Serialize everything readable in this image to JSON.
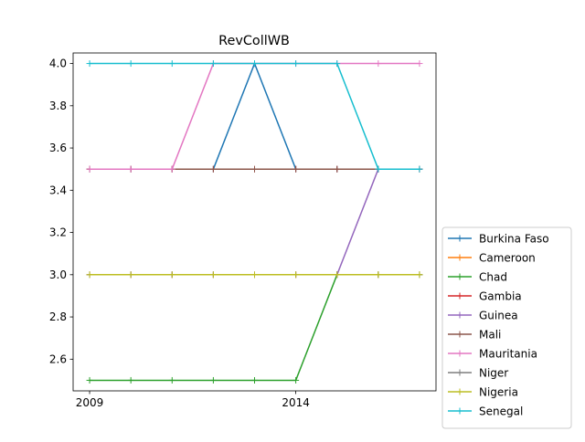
{
  "chart_data": {
    "type": "line",
    "title": "RevCollWB",
    "xlabel": "",
    "ylabel": "",
    "x": [
      2009,
      2010,
      2011,
      2012,
      2013,
      2014,
      2015,
      2016,
      2017
    ],
    "x_ticks": [
      2009,
      2014
    ],
    "xlim": [
      2008.6,
      2017.4
    ],
    "ylim": [
      2.45,
      4.05
    ],
    "y_ticks": [
      "2.6",
      "2.8",
      "3.0",
      "3.2",
      "3.4",
      "3.6",
      "3.8",
      "4.0"
    ],
    "grid": false,
    "legend_position": "lower-right-outside",
    "series": [
      {
        "name": "Burkina Faso",
        "color": "#1f77b4",
        "values": [
          3.5,
          3.5,
          3.5,
          3.5,
          4.0,
          3.5,
          3.5,
          3.5,
          3.5
        ]
      },
      {
        "name": "Cameroon",
        "color": "#ff7f0e",
        "values": [
          3.0,
          3.0,
          3.0,
          3.0,
          3.0,
          3.0,
          3.0,
          3.0,
          3.0
        ]
      },
      {
        "name": "Chad",
        "color": "#2ca02c",
        "values": [
          2.5,
          2.5,
          2.5,
          2.5,
          2.5,
          2.5,
          3.0,
          3.0,
          3.0
        ]
      },
      {
        "name": "Gambia",
        "color": "#d62728",
        "values": [
          3.5,
          3.5,
          3.5,
          3.5,
          3.5,
          3.5,
          3.5,
          3.5,
          3.5
        ]
      },
      {
        "name": "Guinea",
        "color": "#9467bd",
        "values": [
          3.0,
          3.0,
          3.0,
          3.0,
          3.0,
          3.0,
          3.0,
          3.5,
          3.5
        ]
      },
      {
        "name": "Mali",
        "color": "#8c564b",
        "values": [
          3.5,
          3.5,
          3.5,
          3.5,
          3.5,
          3.5,
          3.5,
          3.5,
          3.5
        ]
      },
      {
        "name": "Mauritania",
        "color": "#e377c2",
        "values": [
          3.5,
          3.5,
          3.5,
          4.0,
          4.0,
          4.0,
          4.0,
          4.0,
          4.0
        ]
      },
      {
        "name": "Niger",
        "color": "#7f7f7f",
        "values": [
          3.0,
          3.0,
          3.0,
          3.0,
          3.0,
          3.0,
          3.0,
          3.0,
          3.0
        ]
      },
      {
        "name": "Nigeria",
        "color": "#bcbd22",
        "values": [
          3.0,
          3.0,
          3.0,
          3.0,
          3.0,
          3.0,
          3.0,
          3.0,
          3.0
        ]
      },
      {
        "name": "Senegal",
        "color": "#17becf",
        "values": [
          4.0,
          4.0,
          4.0,
          4.0,
          4.0,
          4.0,
          4.0,
          3.5,
          3.5
        ]
      }
    ]
  }
}
